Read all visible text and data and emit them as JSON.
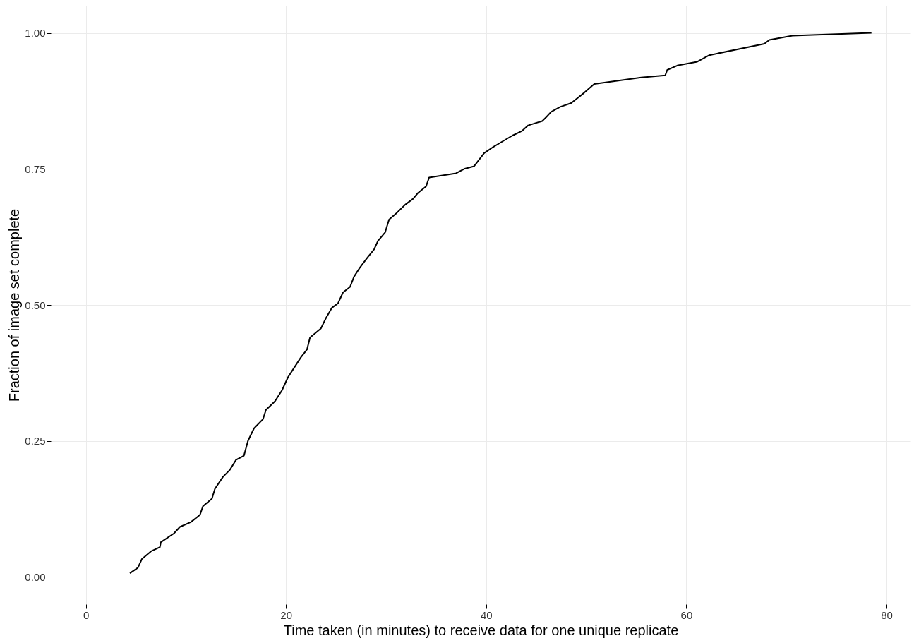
{
  "chart_data": {
    "type": "line",
    "xlabel": "Time taken (in minutes) to receive data for one unique replicate",
    "ylabel": "Fraction of image set complete",
    "x": [
      4.4,
      5.2,
      5.6,
      6.5,
      7.4,
      7.5,
      8.8,
      9.4,
      10.5,
      11.4,
      11.7,
      12.6,
      12.9,
      13.7,
      14.4,
      15.0,
      15.8,
      16.2,
      16.8,
      17.7,
      18.0,
      18.9,
      19.6,
      20.2,
      20.9,
      21.5,
      22.1,
      22.4,
      23.5,
      24.0,
      24.6,
      25.2,
      25.7,
      26.4,
      26.8,
      27.4,
      28.1,
      28.8,
      29.2,
      29.9,
      30.3,
      31.0,
      31.9,
      32.7,
      33.2,
      34.0,
      34.3,
      37.0,
      37.8,
      38.8,
      39.8,
      40.6,
      41.5,
      42.6,
      43.6,
      44.2,
      45.6,
      46.0,
      46.5,
      47.4,
      48.5,
      49.8,
      50.8,
      55.5,
      57.9,
      58.1,
      59.1,
      61.1,
      62.3,
      67.8,
      68.3,
      70.6,
      78.5
    ],
    "series": [
      {
        "color": "#000000",
        "values": [
          0.007,
          0.017,
          0.033,
          0.047,
          0.055,
          0.064,
          0.08,
          0.092,
          0.101,
          0.114,
          0.13,
          0.144,
          0.162,
          0.184,
          0.197,
          0.215,
          0.223,
          0.25,
          0.273,
          0.29,
          0.307,
          0.323,
          0.343,
          0.367,
          0.387,
          0.404,
          0.418,
          0.44,
          0.457,
          0.476,
          0.495,
          0.503,
          0.523,
          0.533,
          0.552,
          0.569,
          0.586,
          0.602,
          0.618,
          0.633,
          0.657,
          0.668,
          0.684,
          0.695,
          0.706,
          0.718,
          0.734,
          0.742,
          0.75,
          0.755,
          0.779,
          0.789,
          0.799,
          0.811,
          0.82,
          0.83,
          0.838,
          0.845,
          0.855,
          0.864,
          0.871,
          0.89,
          0.906,
          0.918,
          0.922,
          0.932,
          0.94,
          0.947,
          0.959,
          0.98,
          0.987,
          0.995,
          1.0
        ]
      }
    ],
    "xlim": [
      -3.5,
      82.4
    ],
    "xticks": [
      0,
      20,
      40,
      60,
      80
    ],
    "ylim": [
      -0.05,
      1.05
    ],
    "yticks": [
      {
        "value": 0,
        "label": "0.00"
      },
      {
        "value": 0.25,
        "label": "0.25"
      },
      {
        "value": 0.5,
        "label": "0.50"
      },
      {
        "value": 0.75,
        "label": "0.75"
      },
      {
        "value": 1,
        "label": "1.00"
      }
    ],
    "grid": true,
    "legend": false
  }
}
